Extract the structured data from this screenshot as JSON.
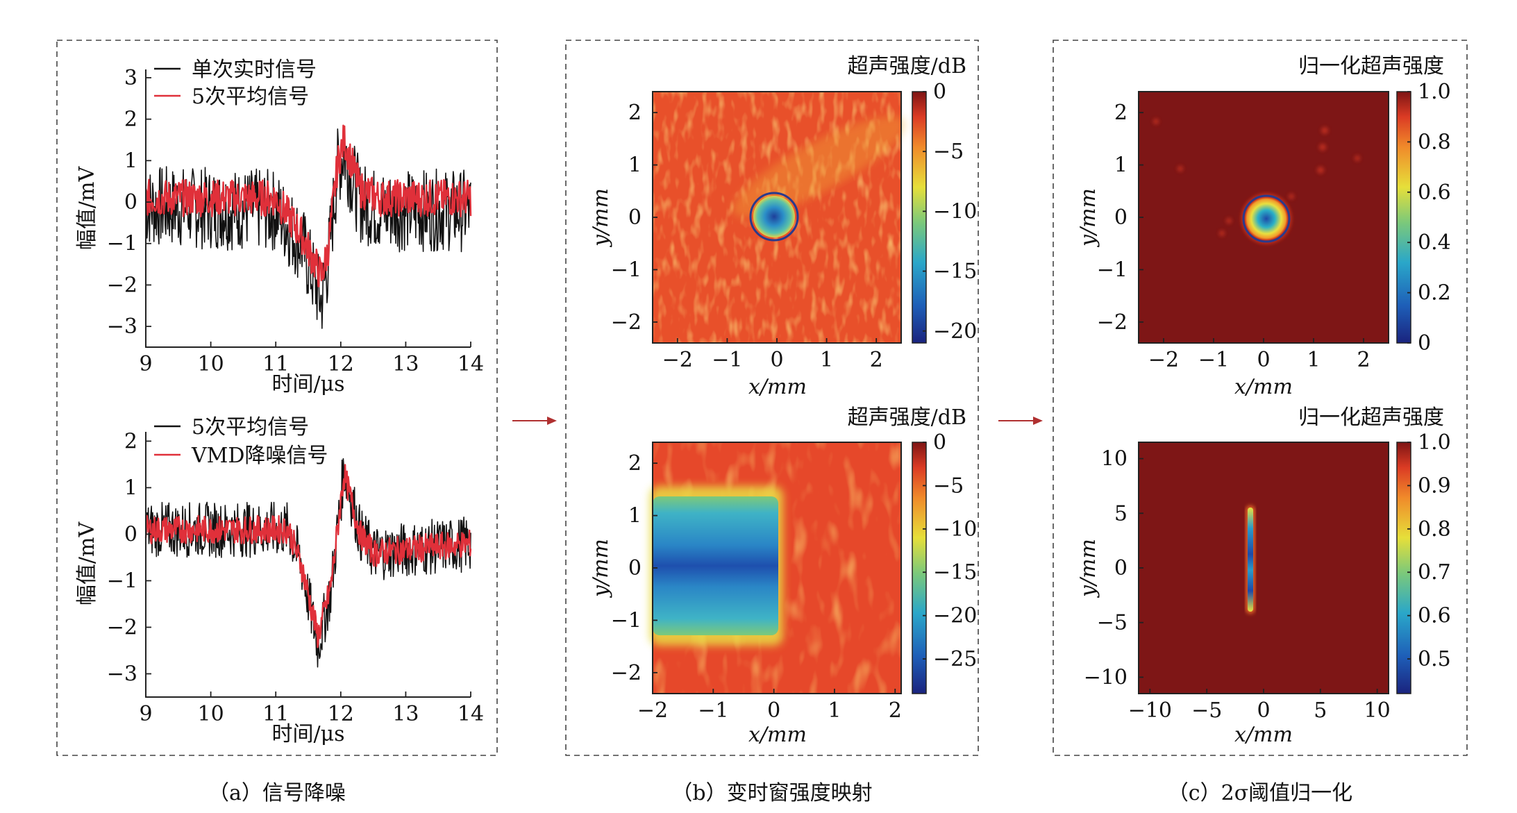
{
  "captions": {
    "a": "（a）信号降噪",
    "b": "（b）变时窗强度映射",
    "c": "（c）2σ阈值归一化"
  },
  "colors": {
    "signal_black": "#111111",
    "signal_red": "#e0303a",
    "arrow": "#b03030",
    "circle": "#2a3a8c"
  },
  "chart_data": [
    {
      "id": "a-top",
      "type": "line",
      "xlabel": "时间/μs",
      "ylabel": "幅值/mV",
      "xlim": [
        9,
        14
      ],
      "ylim": [
        -3.5,
        3.2
      ],
      "xticks": [
        9,
        10,
        11,
        12,
        13,
        14
      ],
      "yticks": [
        -3,
        -2,
        -1,
        0,
        1,
        2,
        3
      ],
      "legend": "top-left",
      "series": [
        {
          "name": "单次实时信号",
          "color": "#111111",
          "noise": 1.0,
          "x": [
            9,
            11.0,
            11.4,
            11.7,
            11.8,
            11.95,
            12.05,
            12.3,
            12.6,
            14
          ],
          "y": [
            -0.1,
            -0.2,
            -1.0,
            -2.4,
            -1.5,
            0.8,
            1.2,
            0.0,
            -0.2,
            -0.2
          ]
        },
        {
          "name": "5次平均信号",
          "color": "#e0303a",
          "noise": 0.45,
          "x": [
            9,
            11.0,
            11.4,
            11.7,
            11.8,
            11.95,
            12.05,
            12.3,
            12.6,
            14
          ],
          "y": [
            0.1,
            0.1,
            -0.8,
            -1.8,
            -1.2,
            0.9,
            1.5,
            0.3,
            0.1,
            0.1
          ]
        }
      ]
    },
    {
      "id": "a-bottom",
      "type": "line",
      "xlabel": "时间/μs",
      "ylabel": "幅值/mV",
      "xlim": [
        9,
        14
      ],
      "ylim": [
        -3.5,
        2.2
      ],
      "xticks": [
        9,
        10,
        11,
        12,
        13,
        14
      ],
      "yticks": [
        -3,
        -2,
        -1,
        0,
        1,
        2
      ],
      "legend": "top-left",
      "series": [
        {
          "name": "5次平均信号",
          "color": "#111111",
          "noise": 0.6,
          "x": [
            9,
            11.2,
            11.4,
            11.65,
            11.85,
            12.05,
            12.3,
            12.5,
            14
          ],
          "y": [
            0.1,
            0.1,
            -0.7,
            -2.4,
            -1.2,
            1.4,
            0.0,
            -0.4,
            -0.2
          ]
        },
        {
          "name": "VMD降噪信号",
          "color": "#e0303a",
          "noise": 0.3,
          "x": [
            9,
            11.2,
            11.4,
            11.65,
            11.85,
            12.05,
            12.3,
            12.5,
            14
          ],
          "y": [
            0.1,
            0.1,
            -0.7,
            -2.2,
            -1.1,
            1.3,
            0.0,
            -0.4,
            -0.2
          ]
        }
      ]
    },
    {
      "id": "b-top",
      "type": "heatmap",
      "xlabel": "x/mm",
      "ylabel": "y/mm",
      "xlim": [
        -2.5,
        2.5
      ],
      "ylim": [
        -2.4,
        2.4
      ],
      "xticks": [
        -2,
        -1,
        0,
        1,
        2
      ],
      "yticks": [
        -2,
        -1,
        0,
        1,
        2
      ],
      "colorbar_title": "超声强度/dB",
      "colorbar_range": [
        -21,
        0
      ],
      "colorbar_ticks": [
        0,
        -5,
        -10,
        -15,
        -20
      ],
      "background_level": -5,
      "features": [
        {
          "shape": "disk",
          "x": -0.15,
          "y": 0.05,
          "r": 0.45,
          "level": -14
        }
      ],
      "circle": {
        "x": -0.15,
        "y": 0.05,
        "r": 0.48
      }
    },
    {
      "id": "b-bottom",
      "type": "heatmap",
      "xlabel": "x/mm",
      "ylabel": "y/mm",
      "xlim": [
        -2,
        2.1
      ],
      "ylim": [
        -2.4,
        2.4
      ],
      "xticks": [
        -2,
        -1,
        0,
        1,
        2
      ],
      "yticks": [
        -2,
        -1,
        0,
        1,
        2
      ],
      "colorbar_title": "超声强度/dB",
      "colorbar_range": [
        -29,
        0
      ],
      "colorbar_ticks": [
        0,
        -5,
        -10,
        -15,
        -20,
        -25
      ],
      "background_level": -5,
      "features": [
        {
          "shape": "band",
          "x0": -2,
          "x1": -0.05,
          "y0": -1.15,
          "y1": 1.15,
          "level": -20
        }
      ]
    },
    {
      "id": "c-top",
      "type": "heatmap",
      "xlabel": "x/mm",
      "ylabel": "y/mm",
      "xlim": [
        -2.5,
        2.5
      ],
      "ylim": [
        -2.4,
        2.4
      ],
      "xticks": [
        -2,
        -1,
        0,
        1,
        2
      ],
      "yticks": [
        -2,
        -1,
        0,
        1,
        2
      ],
      "colorbar_title": "归一化超声强度",
      "colorbar_range": [
        0,
        1
      ],
      "colorbar_ticks": [
        "0",
        "0.2",
        "0.4",
        "0.6",
        "0.8",
        "1.0"
      ],
      "background_level": 1,
      "features": [
        {
          "shape": "disk",
          "x": -0.05,
          "y": 0.05,
          "r": 0.45,
          "level": 0.3
        }
      ],
      "circle": {
        "x": -0.05,
        "y": 0.05,
        "r": 0.45
      }
    },
    {
      "id": "c-bottom",
      "type": "heatmap",
      "xlabel": "x/mm",
      "ylabel": "y/mm",
      "xlim": [
        -11,
        11
      ],
      "ylim": [
        -11.5,
        11.5
      ],
      "xticks": [
        -10,
        -5,
        0,
        5,
        10
      ],
      "yticks": [
        -10,
        -5,
        0,
        5,
        10
      ],
      "colorbar_title": "归一化超声强度",
      "colorbar_range": [
        0.42,
        1
      ],
      "colorbar_ticks": [
        "0.5",
        "0.6",
        "0.7",
        "0.8",
        "0.9",
        "1.0"
      ],
      "background_level": 1,
      "features": [
        {
          "shape": "line",
          "x": -1.0,
          "y0": -4.2,
          "y1": 6.0,
          "level": 0.55
        }
      ]
    }
  ]
}
